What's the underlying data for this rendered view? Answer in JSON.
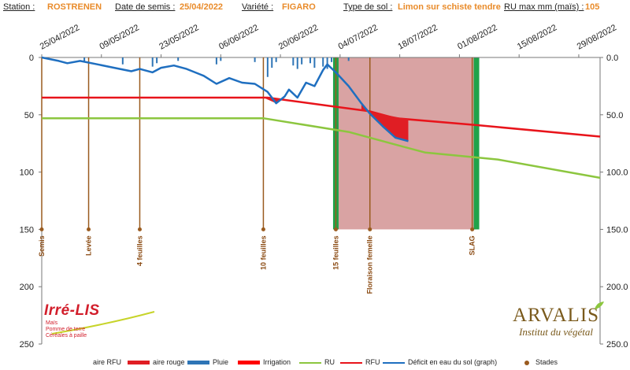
{
  "header": {
    "station_label": "Station :",
    "station_value": "ROSTRENEN",
    "sowing_label": "Date de semis :",
    "sowing_value": "25/04/2022",
    "variety_label": "Variété :",
    "variety_value": "FIGARO",
    "soil_label": "Type de sol :",
    "soil_value": "Limon sur schiste tendre",
    "ru_label": "RU max mm (maïs) :",
    "ru_value": "105"
  },
  "logos": {
    "irrelis_title": "Irré-LIS",
    "irrelis_lines": [
      "Maïs",
      "Pomme de terre",
      "Céréales à paille"
    ],
    "arvalis_title": "ARVALIS",
    "arvalis_sub": "Institut du végétal"
  },
  "legend": {
    "aire_rfu": "aire RFU",
    "aire_rouge": "aire rouge",
    "pluie": "Pluie",
    "irrigation": "Irrigation",
    "ru": "RU",
    "rfu": "RFU",
    "deficit": "Déficit en eau du sol (graph)",
    "stades": "Stades"
  },
  "colors": {
    "deficit": "#1f6fc0",
    "rfu": "#e8141b",
    "ru": "#8cc63f",
    "rain": "#2e75b6",
    "stage": "#9a5b1f",
    "stage_text": "#8a4a12",
    "red_zone": "#d9a3a3",
    "green_bar": "#1fa34a",
    "red_area": "#e01e24",
    "irrigation": "#ff0000"
  },
  "chart_data": {
    "type": "line",
    "x_tick_labels": [
      "25/04/2022",
      "09/05/2022",
      "23/05/2022",
      "06/06/2022",
      "20/06/2022",
      "04/07/2022",
      "18/07/2022",
      "01/08/2022",
      "15/08/2022",
      "29/08/2022"
    ],
    "x_range": [
      "2022-04-25",
      "2022-09-03"
    ],
    "ylim": [
      0,
      250
    ],
    "y_inverted": true,
    "y_ticks_left": [
      "0",
      "50",
      "100",
      "150",
      "200",
      "250"
    ],
    "y_ticks_right": [
      "0.0",
      "50.0",
      "100.0",
      "150.0",
      "200.0",
      "250.0"
    ],
    "red_zone": {
      "start": "2022-07-03",
      "end": "2022-08-05",
      "from": 0,
      "to": 150
    },
    "green_bars": [
      "2022-07-03",
      "2022-08-05"
    ],
    "stages": [
      {
        "date": "2022-04-25",
        "label": "Semis"
      },
      {
        "date": "2022-05-06",
        "label": "Levée"
      },
      {
        "date": "2022-05-18",
        "label": "4 feuilles"
      },
      {
        "date": "2022-06-16",
        "label": "10 feuilles"
      },
      {
        "date": "2022-07-11",
        "label": "Floraison femelle"
      },
      {
        "date": "2022-07-03",
        "label": "15 feuilles"
      },
      {
        "date": "2022-08-04",
        "label": "SLAG"
      }
    ],
    "series": [
      {
        "name": "Déficit en eau du sol (graph)",
        "points": [
          [
            "2022-04-25",
            0
          ],
          [
            "2022-04-29",
            3
          ],
          [
            "2022-05-01",
            5
          ],
          [
            "2022-05-04",
            3
          ],
          [
            "2022-05-08",
            6
          ],
          [
            "2022-05-12",
            9
          ],
          [
            "2022-05-16",
            12
          ],
          [
            "2022-05-18",
            10
          ],
          [
            "2022-05-21",
            13
          ],
          [
            "2022-05-23",
            9
          ],
          [
            "2022-05-26",
            7
          ],
          [
            "2022-05-29",
            10
          ],
          [
            "2022-06-02",
            16
          ],
          [
            "2022-06-05",
            23
          ],
          [
            "2022-06-08",
            18
          ],
          [
            "2022-06-11",
            22
          ],
          [
            "2022-06-14",
            23
          ],
          [
            "2022-06-17",
            30
          ],
          [
            "2022-06-19",
            40
          ],
          [
            "2022-06-21",
            34
          ],
          [
            "2022-06-22",
            28
          ],
          [
            "2022-06-24",
            35
          ],
          [
            "2022-06-26",
            22
          ],
          [
            "2022-06-28",
            25
          ],
          [
            "2022-06-30",
            11
          ],
          [
            "2022-07-01",
            6
          ],
          [
            "2022-07-03",
            13
          ],
          [
            "2022-07-06",
            25
          ],
          [
            "2022-07-09",
            40
          ],
          [
            "2022-07-11",
            49
          ],
          [
            "2022-07-14",
            60
          ],
          [
            "2022-07-17",
            70
          ],
          [
            "2022-07-20",
            73
          ]
        ]
      },
      {
        "name": "RFU",
        "points": [
          [
            "2022-04-25",
            35
          ],
          [
            "2022-06-17",
            35
          ],
          [
            "2022-07-03",
            43
          ],
          [
            "2022-07-11",
            47
          ],
          [
            "2022-07-17",
            53
          ],
          [
            "2022-08-05",
            59
          ],
          [
            "2022-09-03",
            69
          ]
        ]
      },
      {
        "name": "RU",
        "points": [
          [
            "2022-04-25",
            53
          ],
          [
            "2022-06-16",
            53
          ],
          [
            "2022-07-06",
            65
          ],
          [
            "2022-07-17",
            76
          ],
          [
            "2022-07-24",
            83
          ],
          [
            "2022-08-10",
            89
          ],
          [
            "2022-09-03",
            105
          ]
        ]
      },
      {
        "name": "Pluie",
        "bars": [
          [
            "2022-05-05",
            4
          ],
          [
            "2022-05-14",
            6
          ],
          [
            "2022-05-21",
            8
          ],
          [
            "2022-05-22",
            5
          ],
          [
            "2022-05-27",
            3
          ],
          [
            "2022-06-05",
            6
          ],
          [
            "2022-06-06",
            3
          ],
          [
            "2022-06-14",
            4
          ],
          [
            "2022-06-17",
            17
          ],
          [
            "2022-06-18",
            9
          ],
          [
            "2022-06-19",
            4
          ],
          [
            "2022-06-23",
            7
          ],
          [
            "2022-06-24",
            10
          ],
          [
            "2022-06-25",
            6
          ],
          [
            "2022-06-27",
            5
          ],
          [
            "2022-06-28",
            9
          ],
          [
            "2022-06-30",
            8
          ],
          [
            "2022-07-01",
            10
          ],
          [
            "2022-07-02",
            4
          ],
          [
            "2022-07-06",
            3
          ]
        ]
      }
    ]
  }
}
